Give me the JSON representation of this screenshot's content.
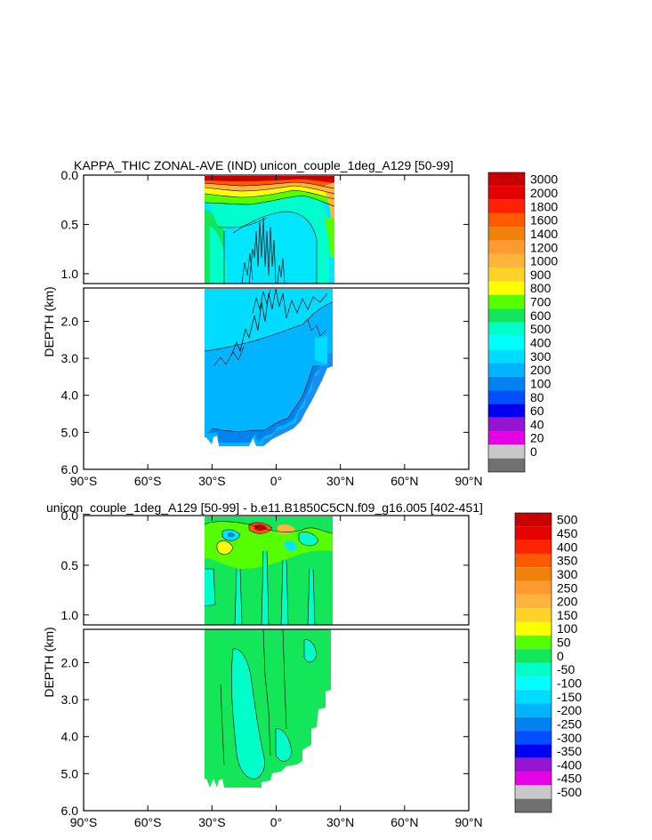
{
  "chart_data": [
    {
      "type": "heatmap",
      "title": "KAPPA_THIC ZONAL-AVE (IND) unicon_couple_1deg_A129 [50-99]",
      "ylabel": "DEPTH (km)",
      "xlabel": "",
      "x_ticks": [
        "90°S",
        "60°S",
        "30°S",
        "0°",
        "30°N",
        "60°N",
        "90°N"
      ],
      "x_tick_values": [
        -90,
        -60,
        -30,
        0,
        30,
        60,
        90
      ],
      "y_ticks_upper": [
        "0.0",
        "0.5",
        "1.0"
      ],
      "y_ticks_upper_values": [
        0,
        0.5,
        1.0
      ],
      "y_ticks_lower": [
        "2.0",
        "3.0",
        "4.0",
        "5.0",
        "6.0"
      ],
      "y_ticks_lower_values": [
        2,
        3,
        4,
        5,
        6
      ],
      "xlim": [
        -90,
        90
      ],
      "ylim_upper": [
        0,
        1.1
      ],
      "ylim_lower": [
        1.1,
        6.0
      ],
      "data_extent": {
        "lat_min": -34,
        "lat_max": 26
      },
      "colorbar_labels": [
        "3000",
        "2000",
        "1800",
        "1600",
        "1400",
        "1200",
        "1000",
        "900",
        "800",
        "700",
        "600",
        "500",
        "400",
        "300",
        "200",
        "100",
        "80",
        "60",
        "40",
        "20",
        "0"
      ],
      "colorbar_colors": [
        "#c80000",
        "#e60000",
        "#ff2200",
        "#ff5a00",
        "#f0820a",
        "#ff9a30",
        "#ffb43c",
        "#ffd228",
        "#ffff00",
        "#55ff00",
        "#14e65a",
        "#00ffc8",
        "#00ffff",
        "#00dcff",
        "#00b4ff",
        "#0082f0",
        "#0050ff",
        "#0000f0",
        "#9614d2",
        "#e600e6",
        "#c8c8c8",
        "#707070"
      ],
      "depth_profile": [
        {
          "lat": -34,
          "max_depth": 5.3
        },
        {
          "lat": -20,
          "max_depth": 5.35
        },
        {
          "lat": -10,
          "max_depth": 5.2
        },
        {
          "lat": 0,
          "max_depth": 5.1
        },
        {
          "lat": 10,
          "max_depth": 4.6
        },
        {
          "lat": 18,
          "max_depth": 3.7
        },
        {
          "lat": 24,
          "max_depth": 3.0
        },
        {
          "lat": 26,
          "max_depth": 2.6
        }
      ]
    },
    {
      "type": "heatmap",
      "title": "unicon_couple_1deg_A129 [50-99] - b.e11.B1850C5CN.f09_g16.005 [402-451]",
      "ylabel": "DEPTH (km)",
      "xlabel": "",
      "x_ticks": [
        "90°S",
        "60°S",
        "30°S",
        "0°",
        "30°N",
        "60°N",
        "90°N"
      ],
      "x_tick_values": [
        -90,
        -60,
        -30,
        0,
        30,
        60,
        90
      ],
      "y_ticks_upper": [
        "0.0",
        "0.5",
        "1.0"
      ],
      "y_ticks_upper_values": [
        0,
        0.5,
        1.0
      ],
      "y_ticks_lower": [
        "2.0",
        "3.0",
        "4.0",
        "5.0",
        "6.0"
      ],
      "y_ticks_lower_values": [
        2,
        3,
        4,
        5,
        6
      ],
      "xlim": [
        -90,
        90
      ],
      "ylim_upper": [
        0,
        1.1
      ],
      "ylim_lower": [
        1.1,
        6.0
      ],
      "data_extent": {
        "lat_min": -34,
        "lat_max": 26
      },
      "colorbar_labels": [
        "500",
        "450",
        "400",
        "350",
        "300",
        "250",
        "200",
        "150",
        "100",
        "50",
        "0",
        "-50",
        "-100",
        "-150",
        "-200",
        "-250",
        "-300",
        "-350",
        "-400",
        "-450",
        "-500"
      ],
      "colorbar_colors": [
        "#c80000",
        "#e60000",
        "#ff2200",
        "#ff5a00",
        "#f0820a",
        "#ff9a30",
        "#ffb43c",
        "#ffd228",
        "#ffff00",
        "#55ff00",
        "#14e65a",
        "#00ffc8",
        "#00ffff",
        "#00dcff",
        "#00b4ff",
        "#0082f0",
        "#0050ff",
        "#0000f0",
        "#9614d2",
        "#e600e6",
        "#c8c8c8",
        "#707070"
      ]
    }
  ]
}
